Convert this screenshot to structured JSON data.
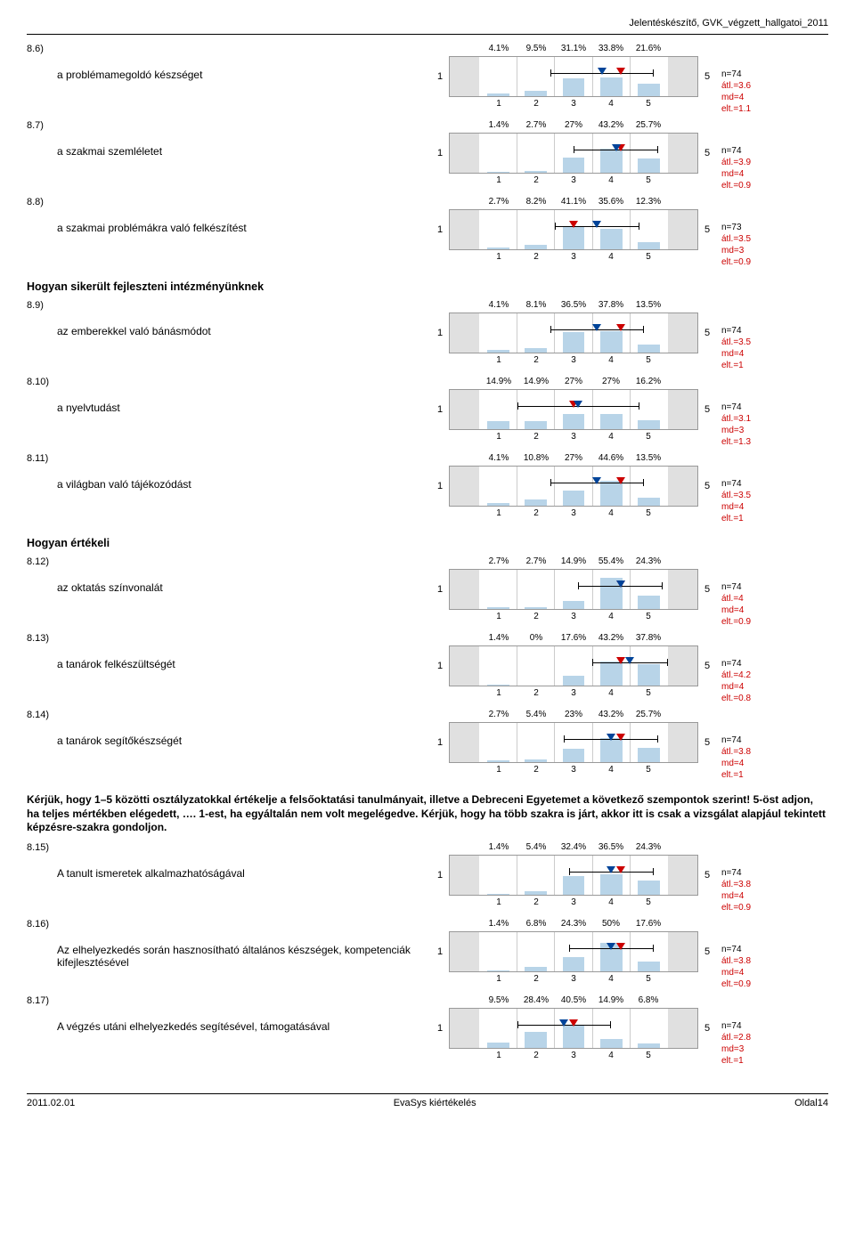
{
  "header": {
    "title": "Jelentéskészítő, GVK_végzett_hallgatoi_2011"
  },
  "sections": [
    {
      "title_id": null,
      "items": [
        {
          "num": "8.6)",
          "text": "a problémamegoldó készséget",
          "pcts": [
            "4.1%",
            "9.5%",
            "31.1%",
            "33.8%",
            "21.6%"
          ],
          "vals": [
            4.1,
            9.5,
            31.1,
            33.8,
            21.6
          ],
          "mean": 3.6,
          "n": "n=74",
          "atl": "átl.=3.6",
          "md": "md=4",
          "elt": "elt.=1.1"
        },
        {
          "num": "8.7)",
          "text": "a szakmai szemléletet",
          "pcts": [
            "1.4%",
            "2.7%",
            "27%",
            "43.2%",
            "25.7%"
          ],
          "vals": [
            1.4,
            2.7,
            27,
            43.2,
            25.7
          ],
          "mean": 3.9,
          "n": "n=74",
          "atl": "átl.=3.9",
          "md": "md=4",
          "elt": "elt.=0.9"
        },
        {
          "num": "8.8)",
          "text": "a szakmai problémákra való felkészítést",
          "pcts": [
            "2.7%",
            "8.2%",
            "41.1%",
            "35.6%",
            "12.3%"
          ],
          "vals": [
            2.7,
            8.2,
            41.1,
            35.6,
            12.3
          ],
          "mean": 3.5,
          "n": "n=73",
          "atl": "átl.=3.5",
          "md": "md=3",
          "elt": "elt.=0.9"
        }
      ]
    },
    {
      "title": "Hogyan sikerült fejleszteni intézményünknek",
      "items": [
        {
          "num": "8.9)",
          "text": "az emberekkel való bánásmódot",
          "pcts": [
            "4.1%",
            "8.1%",
            "36.5%",
            "37.8%",
            "13.5%"
          ],
          "vals": [
            4.1,
            8.1,
            36.5,
            37.8,
            13.5
          ],
          "mean": 3.5,
          "n": "n=74",
          "atl": "átl.=3.5",
          "md": "md=4",
          "elt": "elt.=1"
        },
        {
          "num": "8.10)",
          "text": "a nyelvtudást",
          "pcts": [
            "14.9%",
            "14.9%",
            "27%",
            "27%",
            "16.2%"
          ],
          "vals": [
            14.9,
            14.9,
            27,
            27,
            16.2
          ],
          "mean": 3.1,
          "n": "n=74",
          "atl": "átl.=3.1",
          "md": "md=3",
          "elt": "elt.=1.3"
        },
        {
          "num": "8.11)",
          "text": "a világban való tájékozódást",
          "pcts": [
            "4.1%",
            "10.8%",
            "27%",
            "44.6%",
            "13.5%"
          ],
          "vals": [
            4.1,
            10.8,
            27,
            44.6,
            13.5
          ],
          "mean": 3.5,
          "n": "n=74",
          "atl": "átl.=3.5",
          "md": "md=4",
          "elt": "elt.=1"
        }
      ]
    },
    {
      "title": "Hogyan értékeli",
      "items": [
        {
          "num": "8.12)",
          "text": "az oktatás színvonalát",
          "pcts": [
            "2.7%",
            "2.7%",
            "14.9%",
            "55.4%",
            "24.3%"
          ],
          "vals": [
            2.7,
            2.7,
            14.9,
            55.4,
            24.3
          ],
          "mean": 4.0,
          "n": "n=74",
          "atl": "átl.=4",
          "md": "md=4",
          "elt": "elt.=0.9"
        },
        {
          "num": "8.13)",
          "text": "a tanárok felkészültségét",
          "pcts": [
            "1.4%",
            "0%",
            "17.6%",
            "43.2%",
            "37.8%"
          ],
          "vals": [
            1.4,
            0,
            17.6,
            43.2,
            37.8
          ],
          "mean": 4.2,
          "n": "n=74",
          "atl": "átl.=4.2",
          "md": "md=4",
          "elt": "elt.=0.8"
        },
        {
          "num": "8.14)",
          "text": "a tanárok segítőkészségét",
          "pcts": [
            "2.7%",
            "5.4%",
            "23%",
            "43.2%",
            "25.7%"
          ],
          "vals": [
            2.7,
            5.4,
            23,
            43.2,
            25.7
          ],
          "mean": 3.8,
          "n": "n=74",
          "atl": "átl.=3.8",
          "md": "md=4",
          "elt": "elt.=1"
        }
      ]
    },
    {
      "instructions": "Kérjük, hogy 1–5 közötti osztályzatokkal értékelje a felsőoktatási tanulmányait, illetve a Debreceni Egyetemet a következő szempontok szerint! 5-öst adjon, ha teljes mértékben elégedett, …. 1-est, ha egyáltalán nem volt megelégedve. Kérjük, hogy ha több szakra is járt, akkor itt is csak a vizsgálat alapjául tekintett képzésre-szakra gondoljon.",
      "items": [
        {
          "num": "8.15)",
          "text": "A tanult ismeretek alkalmazhatóságával",
          "pcts": [
            "1.4%",
            "5.4%",
            "32.4%",
            "36.5%",
            "24.3%"
          ],
          "vals": [
            1.4,
            5.4,
            32.4,
            36.5,
            24.3
          ],
          "mean": 3.8,
          "n": "n=74",
          "atl": "átl.=3.8",
          "md": "md=4",
          "elt": "elt.=0.9"
        },
        {
          "num": "8.16)",
          "text": "Az elhelyezkedés során hasznosítható általános készségek, kompetenciák kifejlesztésével",
          "pcts": [
            "1.4%",
            "6.8%",
            "24.3%",
            "50%",
            "17.6%"
          ],
          "vals": [
            1.4,
            6.8,
            24.3,
            50,
            17.6
          ],
          "mean": 3.8,
          "n": "n=74",
          "atl": "átl.=3.8",
          "md": "md=4",
          "elt": "elt.=0.9"
        },
        {
          "num": "8.17)",
          "text": "A végzés utáni elhelyezkedés segítésével, támogatásával",
          "pcts": [
            "9.5%",
            "28.4%",
            "40.5%",
            "14.9%",
            "6.8%"
          ],
          "vals": [
            9.5,
            28.4,
            40.5,
            14.9,
            6.8
          ],
          "mean": 2.8,
          "n": "n=74",
          "atl": "átl.=2.8",
          "md": "md=3",
          "elt": "elt.=1"
        }
      ]
    }
  ],
  "chart": {
    "axis_labels": [
      "1",
      "2",
      "3",
      "4",
      "5"
    ],
    "left_label": "1",
    "right_label": "5",
    "bar_color": "#b8d4e8",
    "grid_color": "#cccccc",
    "bg_gray": "#e0e0e0",
    "border_color": "#999999",
    "marker_red": "#cc0000",
    "marker_blue": "#004489",
    "max_bar_height": 38
  },
  "footer": {
    "left": "2011.02.01",
    "center": "EvaSys kiértékelés",
    "right": "Oldal14"
  }
}
